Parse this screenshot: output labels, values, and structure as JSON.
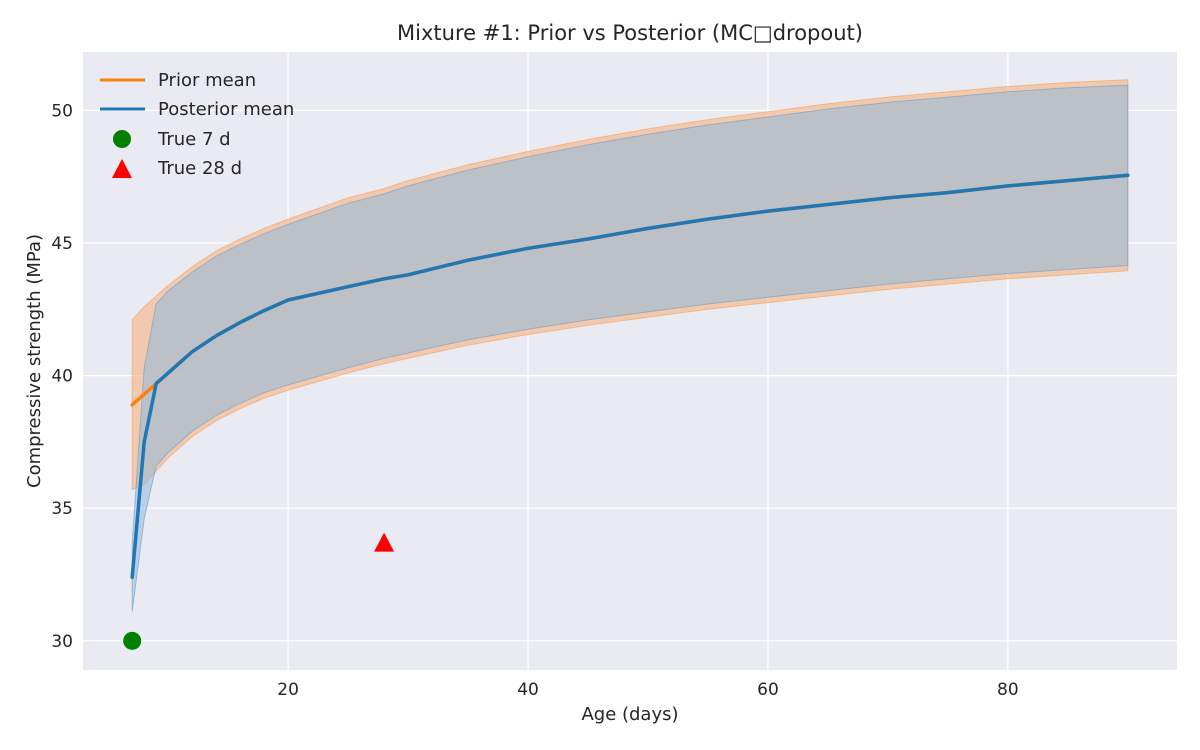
{
  "chart_data": {
    "type": "line",
    "title": "Mixture #1: Prior vs Posterior (MC□dropout)",
    "xlabel": "Age (days)",
    "ylabel": "Compressive strength (MPa)",
    "xlim": [
      2.9,
      94.1
    ],
    "ylim": [
      28.9,
      52.2
    ],
    "xticks": [
      20,
      40,
      60,
      80
    ],
    "yticks": [
      30,
      35,
      40,
      45,
      50
    ],
    "grid": true,
    "legend_position": "top-left",
    "background_color": "#eaeaf2",
    "series": [
      {
        "name": "Prior mean",
        "color": "#ff7f0e",
        "x": [
          7,
          8,
          9,
          10,
          12,
          14,
          16,
          18,
          20,
          25,
          28,
          30,
          35,
          40,
          45,
          50,
          55,
          60,
          65,
          70,
          75,
          80,
          85,
          90
        ],
        "y": [
          38.9,
          39.3,
          39.7,
          40.1,
          40.9,
          41.5,
          42.0,
          42.45,
          42.85,
          43.35,
          43.65,
          43.8,
          44.35,
          44.8,
          45.15,
          45.55,
          45.9,
          46.2,
          46.45,
          46.7,
          46.9,
          47.15,
          47.35,
          47.55
        ],
        "band_lower": [
          35.7,
          35.9,
          36.4,
          36.9,
          37.7,
          38.3,
          38.75,
          39.15,
          39.45,
          40.1,
          40.45,
          40.65,
          41.15,
          41.55,
          41.9,
          42.2,
          42.5,
          42.75,
          43.0,
          43.25,
          43.45,
          43.65,
          43.8,
          43.95
        ],
        "band_upper": [
          42.1,
          42.6,
          43.0,
          43.4,
          44.1,
          44.7,
          45.15,
          45.55,
          45.9,
          46.7,
          47.05,
          47.35,
          47.95,
          48.45,
          48.9,
          49.3,
          49.65,
          49.95,
          50.25,
          50.5,
          50.7,
          50.9,
          51.05,
          51.15
        ]
      },
      {
        "name": "Posterior mean",
        "color": "#1f77b4",
        "x": [
          7,
          8,
          9,
          10,
          12,
          14,
          16,
          18,
          20,
          25,
          28,
          30,
          35,
          40,
          45,
          50,
          55,
          60,
          65,
          70,
          75,
          80,
          85,
          90
        ],
        "y": [
          32.4,
          37.5,
          39.7,
          40.1,
          40.9,
          41.5,
          42.0,
          42.45,
          42.85,
          43.35,
          43.65,
          43.8,
          44.35,
          44.8,
          45.15,
          45.55,
          45.9,
          46.2,
          46.45,
          46.7,
          46.9,
          47.15,
          47.35,
          47.55
        ],
        "band_lower": [
          31.1,
          34.6,
          36.6,
          37.1,
          37.9,
          38.5,
          38.95,
          39.35,
          39.65,
          40.3,
          40.65,
          40.85,
          41.35,
          41.75,
          42.1,
          42.4,
          42.7,
          42.95,
          43.2,
          43.45,
          43.65,
          43.85,
          44.0,
          44.15
        ],
        "band_upper": [
          33.7,
          40.3,
          42.7,
          43.2,
          43.9,
          44.5,
          44.95,
          45.35,
          45.7,
          46.5,
          46.85,
          47.15,
          47.75,
          48.25,
          48.7,
          49.1,
          49.45,
          49.75,
          50.05,
          50.3,
          50.5,
          50.7,
          50.85,
          50.95
        ]
      }
    ],
    "points": [
      {
        "name": "True 7 d",
        "x": 7,
        "y": 30.0,
        "marker": "circle",
        "color": "#008000"
      },
      {
        "name": "True 28 d",
        "x": 28,
        "y": 33.7,
        "marker": "triangle",
        "color": "#ff0000"
      }
    ]
  }
}
